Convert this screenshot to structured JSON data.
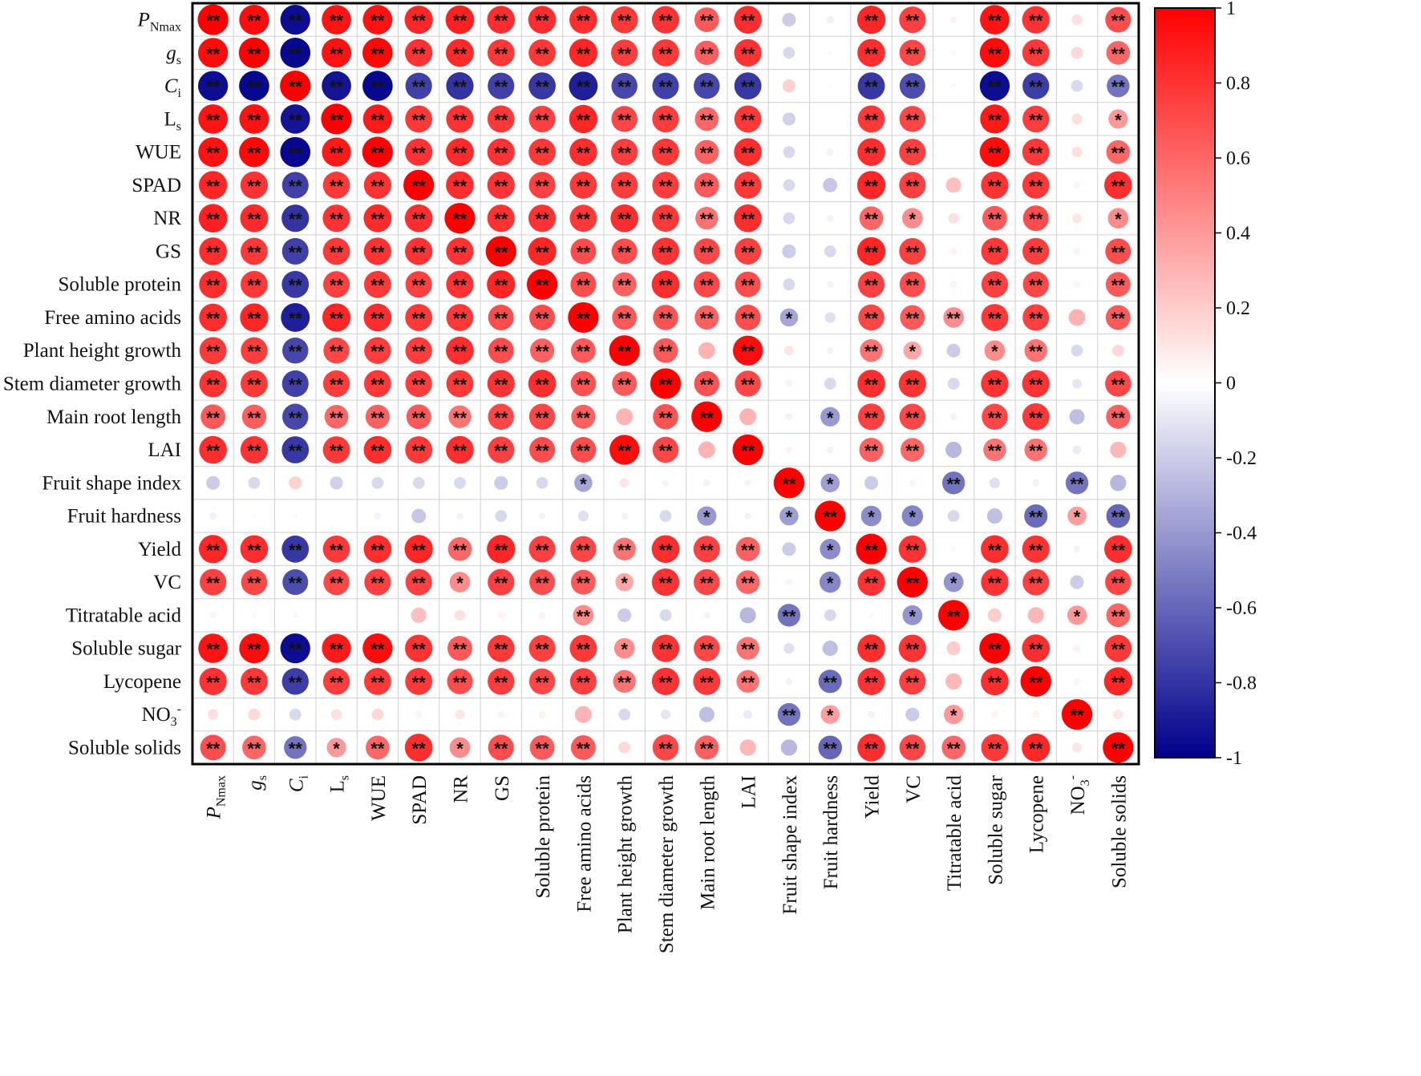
{
  "chart_data": {
    "type": "heatmap",
    "title": "",
    "style": "correlation matrix (circle size and color encode r)",
    "variables": [
      {
        "base": "P",
        "sub": "Nmax",
        "sup": "",
        "italic": true
      },
      {
        "base": "g",
        "sub": "s",
        "sup": "",
        "italic": true
      },
      {
        "base": "C",
        "sub": "i",
        "sup": "",
        "italic": true
      },
      {
        "base": "L",
        "sub": "s",
        "sup": "",
        "italic": false
      },
      {
        "base": "WUE",
        "sub": "",
        "sup": "",
        "italic": false
      },
      {
        "base": "SPAD",
        "sub": "",
        "sup": "",
        "italic": false
      },
      {
        "base": "NR",
        "sub": "",
        "sup": "",
        "italic": false
      },
      {
        "base": "GS",
        "sub": "",
        "sup": "",
        "italic": false
      },
      {
        "base": "Soluble protein",
        "sub": "",
        "sup": "",
        "italic": false
      },
      {
        "base": "Free amino acids",
        "sub": "",
        "sup": "",
        "italic": false
      },
      {
        "base": "Plant height growth",
        "sub": "",
        "sup": "",
        "italic": false
      },
      {
        "base": "Stem diameter growth",
        "sub": "",
        "sup": "",
        "italic": false
      },
      {
        "base": "Main root length",
        "sub": "",
        "sup": "",
        "italic": false
      },
      {
        "base": "LAI",
        "sub": "",
        "sup": "",
        "italic": false
      },
      {
        "base": "Fruit shape index",
        "sub": "",
        "sup": "",
        "italic": false
      },
      {
        "base": "Fruit hardness",
        "sub": "",
        "sup": "",
        "italic": false
      },
      {
        "base": "Yield",
        "sub": "",
        "sup": "",
        "italic": false
      },
      {
        "base": "VC",
        "sub": "",
        "sup": "",
        "italic": false
      },
      {
        "base": "Titratable acid",
        "sub": "",
        "sup": "",
        "italic": false
      },
      {
        "base": "Soluble sugar",
        "sub": "",
        "sup": "",
        "italic": false
      },
      {
        "base": "Lycopene",
        "sub": "",
        "sup": "",
        "italic": false
      },
      {
        "base": "NO",
        "sub": "3",
        "sup": "-",
        "italic": false
      },
      {
        "base": "Soluble solids",
        "sub": "",
        "sup": "",
        "italic": false
      }
    ],
    "r": [
      [
        1.0,
        0.95,
        -0.95,
        0.92,
        0.93,
        0.85,
        0.87,
        0.82,
        0.82,
        0.82,
        0.78,
        0.8,
        0.65,
        0.82,
        -0.2,
        -0.06,
        0.85,
        0.75,
        0.05,
        0.92,
        0.8,
        0.12,
        0.7
      ],
      [
        0.95,
        1.0,
        -0.97,
        0.93,
        0.97,
        0.8,
        0.83,
        0.78,
        0.78,
        0.85,
        0.76,
        0.78,
        0.63,
        0.8,
        -0.15,
        -0.02,
        0.82,
        0.72,
        0.03,
        0.95,
        0.78,
        0.15,
        0.6
      ],
      [
        -0.95,
        -0.97,
        1.0,
        -0.92,
        -0.97,
        -0.75,
        -0.8,
        -0.75,
        -0.78,
        -0.88,
        -0.72,
        -0.75,
        -0.72,
        -0.78,
        0.18,
        0.02,
        -0.78,
        -0.7,
        -0.03,
        -0.95,
        -0.76,
        -0.15,
        -0.55
      ],
      [
        0.92,
        0.93,
        -0.92,
        1.0,
        0.9,
        0.78,
        0.8,
        0.78,
        0.75,
        0.85,
        0.72,
        0.76,
        0.6,
        0.78,
        -0.18,
        0.0,
        0.78,
        0.72,
        0.0,
        0.9,
        0.76,
        0.12,
        0.4
      ],
      [
        0.93,
        0.97,
        -0.97,
        0.9,
        1.0,
        0.8,
        0.83,
        0.8,
        0.78,
        0.82,
        0.76,
        0.78,
        0.62,
        0.82,
        -0.15,
        -0.05,
        0.82,
        0.75,
        0.0,
        0.95,
        0.78,
        0.12,
        0.6
      ],
      [
        0.85,
        0.8,
        -0.75,
        0.78,
        0.8,
        1.0,
        0.82,
        0.8,
        0.75,
        0.78,
        0.76,
        0.76,
        0.65,
        0.78,
        -0.15,
        -0.22,
        0.85,
        0.75,
        0.25,
        0.8,
        0.78,
        0.05,
        0.82
      ],
      [
        0.87,
        0.83,
        -0.8,
        0.8,
        0.83,
        0.82,
        1.0,
        0.8,
        0.8,
        0.78,
        0.82,
        0.78,
        0.55,
        0.82,
        -0.15,
        -0.05,
        0.6,
        0.45,
        0.12,
        0.65,
        0.7,
        0.1,
        0.45
      ],
      [
        0.82,
        0.78,
        -0.75,
        0.78,
        0.8,
        0.8,
        0.8,
        1.0,
        0.85,
        0.7,
        0.7,
        0.8,
        0.72,
        0.75,
        -0.2,
        -0.15,
        0.85,
        0.75,
        0.05,
        0.78,
        0.76,
        0.05,
        0.7
      ],
      [
        0.82,
        0.78,
        -0.78,
        0.75,
        0.78,
        0.75,
        0.8,
        0.85,
        1.0,
        0.7,
        0.62,
        0.82,
        0.72,
        0.7,
        -0.15,
        -0.05,
        0.75,
        0.7,
        0.05,
        0.75,
        0.72,
        0.05,
        0.65
      ],
      [
        0.82,
        0.85,
        -0.88,
        0.85,
        0.82,
        0.78,
        0.78,
        0.7,
        0.7,
        1.0,
        0.65,
        0.68,
        0.62,
        0.7,
        -0.35,
        -0.12,
        0.72,
        0.65,
        0.45,
        0.78,
        0.75,
        0.3,
        0.65
      ],
      [
        0.78,
        0.76,
        -0.72,
        0.72,
        0.76,
        0.76,
        0.82,
        0.7,
        0.62,
        0.65,
        1.0,
        0.65,
        0.3,
        0.95,
        0.1,
        -0.05,
        0.55,
        0.35,
        -0.2,
        0.45,
        0.55,
        -0.15,
        0.15
      ],
      [
        0.8,
        0.78,
        -0.75,
        0.76,
        0.78,
        0.76,
        0.78,
        0.8,
        0.82,
        0.68,
        0.65,
        1.0,
        0.68,
        0.72,
        0.05,
        -0.15,
        0.82,
        0.8,
        -0.15,
        0.8,
        0.8,
        -0.1,
        0.72
      ],
      [
        0.65,
        0.63,
        -0.72,
        0.6,
        0.62,
        0.65,
        0.55,
        0.72,
        0.72,
        0.62,
        0.3,
        0.68,
        1.0,
        0.3,
        -0.05,
        -0.4,
        0.75,
        0.72,
        -0.05,
        0.72,
        0.78,
        -0.25,
        0.62
      ],
      [
        0.82,
        0.8,
        -0.78,
        0.78,
        0.82,
        0.78,
        0.82,
        0.75,
        0.7,
        0.7,
        0.95,
        0.72,
        0.3,
        1.0,
        0.05,
        -0.05,
        0.62,
        0.6,
        -0.28,
        0.55,
        0.55,
        -0.08,
        0.28
      ],
      [
        -0.2,
        -0.15,
        0.18,
        -0.18,
        -0.15,
        -0.15,
        -0.15,
        -0.2,
        -0.15,
        -0.35,
        0.1,
        0.05,
        -0.05,
        0.05,
        1.0,
        -0.38,
        -0.2,
        0.05,
        -0.55,
        -0.12,
        -0.05,
        -0.55,
        -0.28
      ],
      [
        -0.06,
        -0.02,
        0.02,
        0.0,
        -0.05,
        -0.22,
        -0.05,
        -0.15,
        -0.05,
        -0.12,
        -0.05,
        -0.15,
        -0.4,
        -0.05,
        -0.38,
        1.0,
        -0.45,
        -0.48,
        -0.15,
        -0.25,
        -0.58,
        0.38,
        -0.6
      ],
      [
        0.85,
        0.82,
        -0.78,
        0.78,
        0.82,
        0.85,
        0.6,
        0.85,
        0.75,
        0.72,
        0.55,
        0.82,
        0.75,
        0.62,
        -0.2,
        -0.45,
        1.0,
        0.8,
        -0.03,
        0.82,
        0.8,
        -0.05,
        0.82
      ],
      [
        0.75,
        0.72,
        -0.7,
        0.72,
        0.75,
        0.75,
        0.45,
        0.75,
        0.7,
        0.65,
        0.35,
        0.8,
        0.72,
        0.6,
        0.05,
        -0.48,
        0.8,
        1.0,
        -0.42,
        0.8,
        0.75,
        -0.2,
        0.72
      ],
      [
        0.05,
        0.03,
        -0.03,
        0.0,
        0.0,
        0.25,
        0.12,
        0.05,
        0.05,
        0.45,
        -0.2,
        -0.15,
        -0.05,
        -0.28,
        -0.55,
        -0.15,
        -0.03,
        -0.42,
        1.0,
        0.2,
        0.28,
        0.4,
        0.6
      ],
      [
        0.92,
        0.95,
        -0.95,
        0.9,
        0.95,
        0.8,
        0.65,
        0.78,
        0.75,
        0.78,
        0.45,
        0.8,
        0.72,
        0.55,
        -0.12,
        -0.25,
        0.82,
        0.8,
        0.2,
        1.0,
        0.82,
        0.05,
        0.78
      ],
      [
        0.8,
        0.78,
        -0.76,
        0.76,
        0.78,
        0.78,
        0.7,
        0.76,
        0.72,
        0.75,
        0.55,
        0.8,
        0.78,
        0.55,
        -0.05,
        -0.58,
        0.8,
        0.75,
        0.28,
        0.82,
        1.0,
        0.05,
        0.85
      ],
      [
        0.12,
        0.15,
        -0.15,
        0.12,
        0.15,
        0.05,
        0.1,
        0.05,
        0.05,
        0.3,
        -0.15,
        -0.1,
        -0.25,
        -0.08,
        -0.55,
        0.38,
        -0.05,
        -0.2,
        0.4,
        0.05,
        0.05,
        1.0,
        0.1
      ],
      [
        0.7,
        0.6,
        -0.55,
        0.4,
        0.6,
        0.82,
        0.45,
        0.7,
        0.65,
        0.65,
        0.15,
        0.72,
        0.62,
        0.28,
        -0.28,
        -0.6,
        0.82,
        0.72,
        0.6,
        0.78,
        0.85,
        0.1,
        1.0
      ]
    ],
    "sig": [
      [
        "**",
        "**",
        "**",
        "**",
        "**",
        "**",
        "**",
        "**",
        "**",
        "**",
        "**",
        "**",
        "**",
        "**",
        "",
        "",
        "**",
        "**",
        "",
        "**",
        "**",
        "",
        "**"
      ],
      [
        "**",
        "**",
        "**",
        "**",
        "**",
        "**",
        "**",
        "**",
        "**",
        "**",
        "**",
        "**",
        "**",
        "**",
        "",
        "",
        "**",
        "**",
        "",
        "**",
        "**",
        "",
        "**"
      ],
      [
        "**",
        "**",
        "**",
        "**",
        "**",
        "**",
        "**",
        "**",
        "**",
        "**",
        "**",
        "**",
        "**",
        "**",
        "",
        "",
        "**",
        "**",
        "",
        "**",
        "**",
        "",
        "**"
      ],
      [
        "**",
        "**",
        "**",
        "**",
        "**",
        "**",
        "**",
        "**",
        "**",
        "**",
        "**",
        "**",
        "**",
        "**",
        "",
        "",
        "**",
        "**",
        "",
        "**",
        "**",
        "",
        "*"
      ],
      [
        "**",
        "**",
        "**",
        "**",
        "**",
        "**",
        "**",
        "**",
        "**",
        "**",
        "**",
        "**",
        "**",
        "**",
        "",
        "",
        "**",
        "**",
        "",
        "**",
        "**",
        "",
        "**"
      ],
      [
        "**",
        "**",
        "**",
        "**",
        "**",
        "**",
        "**",
        "**",
        "**",
        "**",
        "**",
        "**",
        "**",
        "**",
        "",
        "",
        "**",
        "**",
        "",
        "**",
        "**",
        "",
        "**"
      ],
      [
        "**",
        "**",
        "**",
        "**",
        "**",
        "**",
        "**",
        "**",
        "**",
        "**",
        "**",
        "**",
        "**",
        "**",
        "",
        "",
        "**",
        "*",
        "",
        "**",
        "**",
        "",
        "*"
      ],
      [
        "**",
        "**",
        "**",
        "**",
        "**",
        "**",
        "**",
        "**",
        "**",
        "**",
        "**",
        "**",
        "**",
        "**",
        "",
        "",
        "**",
        "**",
        "",
        "**",
        "**",
        "",
        "**"
      ],
      [
        "**",
        "**",
        "**",
        "**",
        "**",
        "**",
        "**",
        "**",
        "**",
        "**",
        "**",
        "**",
        "**",
        "**",
        "",
        "",
        "**",
        "**",
        "",
        "**",
        "**",
        "",
        "**"
      ],
      [
        "**",
        "**",
        "**",
        "**",
        "**",
        "**",
        "**",
        "**",
        "**",
        "**",
        "**",
        "**",
        "**",
        "**",
        "*",
        "",
        "**",
        "**",
        "**",
        "**",
        "**",
        "",
        "**"
      ],
      [
        "**",
        "**",
        "**",
        "**",
        "**",
        "**",
        "**",
        "**",
        "**",
        "**",
        "**",
        "**",
        "",
        "**",
        "",
        "",
        "**",
        "*",
        "",
        "*",
        "**",
        "",
        ""
      ],
      [
        "**",
        "**",
        "**",
        "**",
        "**",
        "**",
        "**",
        "**",
        "**",
        "**",
        "**",
        "**",
        "**",
        "**",
        "",
        "",
        "**",
        "**",
        "",
        "**",
        "**",
        "",
        "**"
      ],
      [
        "**",
        "**",
        "**",
        "**",
        "**",
        "**",
        "**",
        "**",
        "**",
        "**",
        "",
        "**",
        "**",
        "",
        "",
        "*",
        "**",
        "**",
        "",
        "**",
        "**",
        "",
        "**"
      ],
      [
        "**",
        "**",
        "**",
        "**",
        "**",
        "**",
        "**",
        "**",
        "**",
        "**",
        "**",
        "**",
        "",
        "**",
        "",
        "",
        "**",
        "**",
        "",
        "**",
        "**",
        "",
        ""
      ],
      [
        "",
        "",
        "",
        "",
        "",
        "",
        "",
        "",
        "",
        "*",
        "",
        "",
        "",
        "",
        "**",
        "*",
        "",
        "",
        "**",
        "",
        "",
        "**",
        ""
      ],
      [
        "",
        "",
        "",
        "",
        "",
        "",
        "",
        "",
        "",
        "",
        "",
        "",
        "*",
        "",
        "*",
        "**",
        "*",
        "*",
        "",
        "",
        "**",
        "*",
        "**"
      ],
      [
        "**",
        "**",
        "**",
        "**",
        "**",
        "**",
        "**",
        "**",
        "**",
        "**",
        "**",
        "**",
        "**",
        "**",
        "",
        "*",
        "**",
        "**",
        "",
        "**",
        "**",
        "",
        "**"
      ],
      [
        "**",
        "**",
        "**",
        "**",
        "**",
        "**",
        "*",
        "**",
        "**",
        "**",
        "*",
        "**",
        "**",
        "**",
        "",
        "*",
        "**",
        "**",
        "*",
        "**",
        "**",
        "",
        "**"
      ],
      [
        "",
        "",
        "",
        "",
        "",
        "",
        "",
        "",
        "",
        "**",
        "",
        "",
        "",
        "",
        "**",
        "",
        "",
        "*",
        "**",
        "",
        "",
        "*",
        "**"
      ],
      [
        "**",
        "**",
        "**",
        "**",
        "**",
        "**",
        "**",
        "**",
        "**",
        "**",
        "*",
        "**",
        "**",
        "**",
        "",
        "",
        "**",
        "**",
        "",
        "**",
        "**",
        "",
        "**"
      ],
      [
        "**",
        "**",
        "**",
        "**",
        "**",
        "**",
        "**",
        "**",
        "**",
        "**",
        "**",
        "**",
        "**",
        "**",
        "",
        "**",
        "**",
        "**",
        "",
        "**",
        "**",
        "",
        "**"
      ],
      [
        "",
        "",
        "",
        "",
        "",
        "",
        "",
        "",
        "",
        "",
        "",
        "",
        "",
        "",
        "**",
        "*",
        "",
        "",
        "*",
        "",
        "",
        "**",
        ""
      ],
      [
        "**",
        "**",
        "**",
        "*",
        "**",
        "**",
        "*",
        "**",
        "**",
        "**",
        "",
        "**",
        "**",
        "",
        "",
        "**",
        "**",
        "**",
        "**",
        "**",
        "**",
        "",
        "**"
      ]
    ],
    "colorbar": {
      "ticks": [
        "1",
        "0.8",
        "0.6",
        "0.4",
        "0.2",
        "0",
        "-0.2",
        "-0.4",
        "-0.6",
        "-0.8",
        "-1"
      ],
      "range": [
        -1,
        1
      ],
      "colors": {
        "neg": "#00008b",
        "mid": "#ffffff",
        "pos": "#ff0000"
      }
    }
  }
}
